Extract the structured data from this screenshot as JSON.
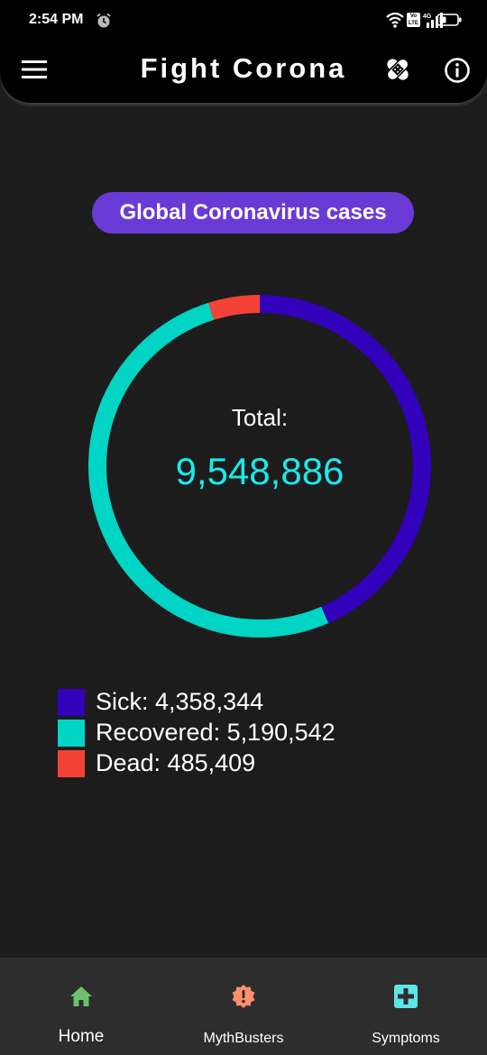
{
  "status_bar": {
    "time": "2:54 PM",
    "network": "4G",
    "volte": "Vo LTE"
  },
  "app_bar": {
    "title": "Fight Corona",
    "icons": [
      "menu-icon",
      "bandage-icon",
      "info-icon"
    ]
  },
  "heading": "Global Coronavirus cases",
  "total": {
    "label": "Total:",
    "value": "9,548,886"
  },
  "chart_data": {
    "type": "pie",
    "style": "donut",
    "title": "",
    "center_text": "Total: 9,548,886",
    "slices": [
      {
        "name": "Sick",
        "value": 4358344,
        "color": "#3300bb"
      },
      {
        "name": "Recovered",
        "value": 5190542,
        "color": "#00d4c4"
      },
      {
        "name": "Dead",
        "value": 485409,
        "color": "#f44336"
      }
    ]
  },
  "legend": [
    {
      "label": "Sick: 4,358,344",
      "color": "#3300bb"
    },
    {
      "label": "Recovered: 5,190,542",
      "color": "#00d4c4"
    },
    {
      "label": "Dead: 485,409",
      "color": "#f44336"
    }
  ],
  "bottom_nav": [
    {
      "label": "Home",
      "icon": "home-icon",
      "color": "#6cc070",
      "selected": true
    },
    {
      "label": "MythBusters",
      "icon": "alert-badge-icon",
      "color": "#ff8f70",
      "selected": false
    },
    {
      "label": "Symptoms",
      "icon": "medical-plus-icon",
      "color": "#5ce6e6",
      "selected": false
    }
  ]
}
